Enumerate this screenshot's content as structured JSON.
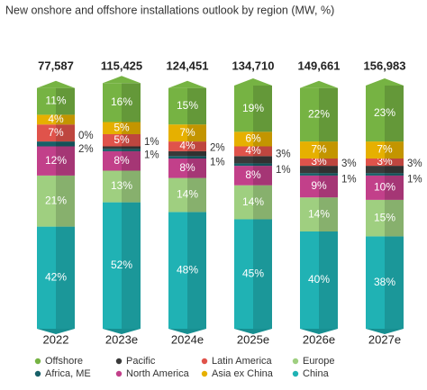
{
  "chart_data": {
    "type": "stacked_bar",
    "title": "New onshore and offshore installations outlook by region (MW, %)",
    "categories": [
      "2022",
      "2023e",
      "2024e",
      "2025e",
      "2026e",
      "2027e"
    ],
    "totals": {
      "values": [
        77587,
        115425,
        124451,
        134710,
        149661,
        156983
      ],
      "value_labels": [
        "77,587",
        "115,425",
        "124,451",
        "134,710",
        "149,661",
        "156,983"
      ]
    },
    "ylim": [
      0,
      100
    ],
    "series": [
      {
        "name": "China",
        "color": "#20b2b4",
        "values": [
          42,
          52,
          48,
          45,
          40,
          38
        ],
        "value_labels": [
          "42%",
          "52%",
          "48%",
          "45%",
          "40%",
          "38%"
        ]
      },
      {
        "name": "Europe",
        "color": "#9fcf80",
        "values": [
          21,
          13,
          14,
          14,
          14,
          15
        ],
        "value_labels": [
          "21%",
          "13%",
          "14%",
          "14%",
          "14%",
          "15%"
        ]
      },
      {
        "name": "North America",
        "color": "#c2408a",
        "values": [
          12,
          8,
          8,
          8,
          9,
          10
        ],
        "value_labels": [
          "12%",
          "8%",
          "8%",
          "8%",
          "9%",
          "10%"
        ]
      },
      {
        "name": "Africa, ME",
        "color": "#176068",
        "values": [
          2,
          1,
          1,
          1,
          1,
          1
        ],
        "value_labels": [
          "2%",
          "1%",
          "1%",
          "1%",
          "1%",
          "1%"
        ]
      },
      {
        "name": "Pacific",
        "color": "#3a3a3a",
        "values": [
          0,
          1,
          2,
          3,
          3,
          3
        ],
        "value_labels": [
          "0%",
          "1%",
          "2%",
          "3%",
          "3%",
          "3%"
        ]
      },
      {
        "name": "Latin America",
        "color": "#e0534b",
        "values": [
          7,
          5,
          4,
          4,
          3,
          3
        ],
        "value_labels": [
          "7%",
          "5%",
          "4%",
          "4%",
          "3%",
          "3%"
        ]
      },
      {
        "name": "Asia ex China",
        "color": "#e6b000",
        "values": [
          4,
          5,
          7,
          6,
          7,
          7
        ],
        "value_labels": [
          "4%",
          "5%",
          "7%",
          "6%",
          "7%",
          "7%"
        ]
      },
      {
        "name": "Offshore",
        "color": "#76b343",
        "values": [
          11,
          16,
          15,
          19,
          22,
          23
        ],
        "value_labels": [
          "11%",
          "16%",
          "15%",
          "19%",
          "22%",
          "23%"
        ]
      }
    ]
  }
}
